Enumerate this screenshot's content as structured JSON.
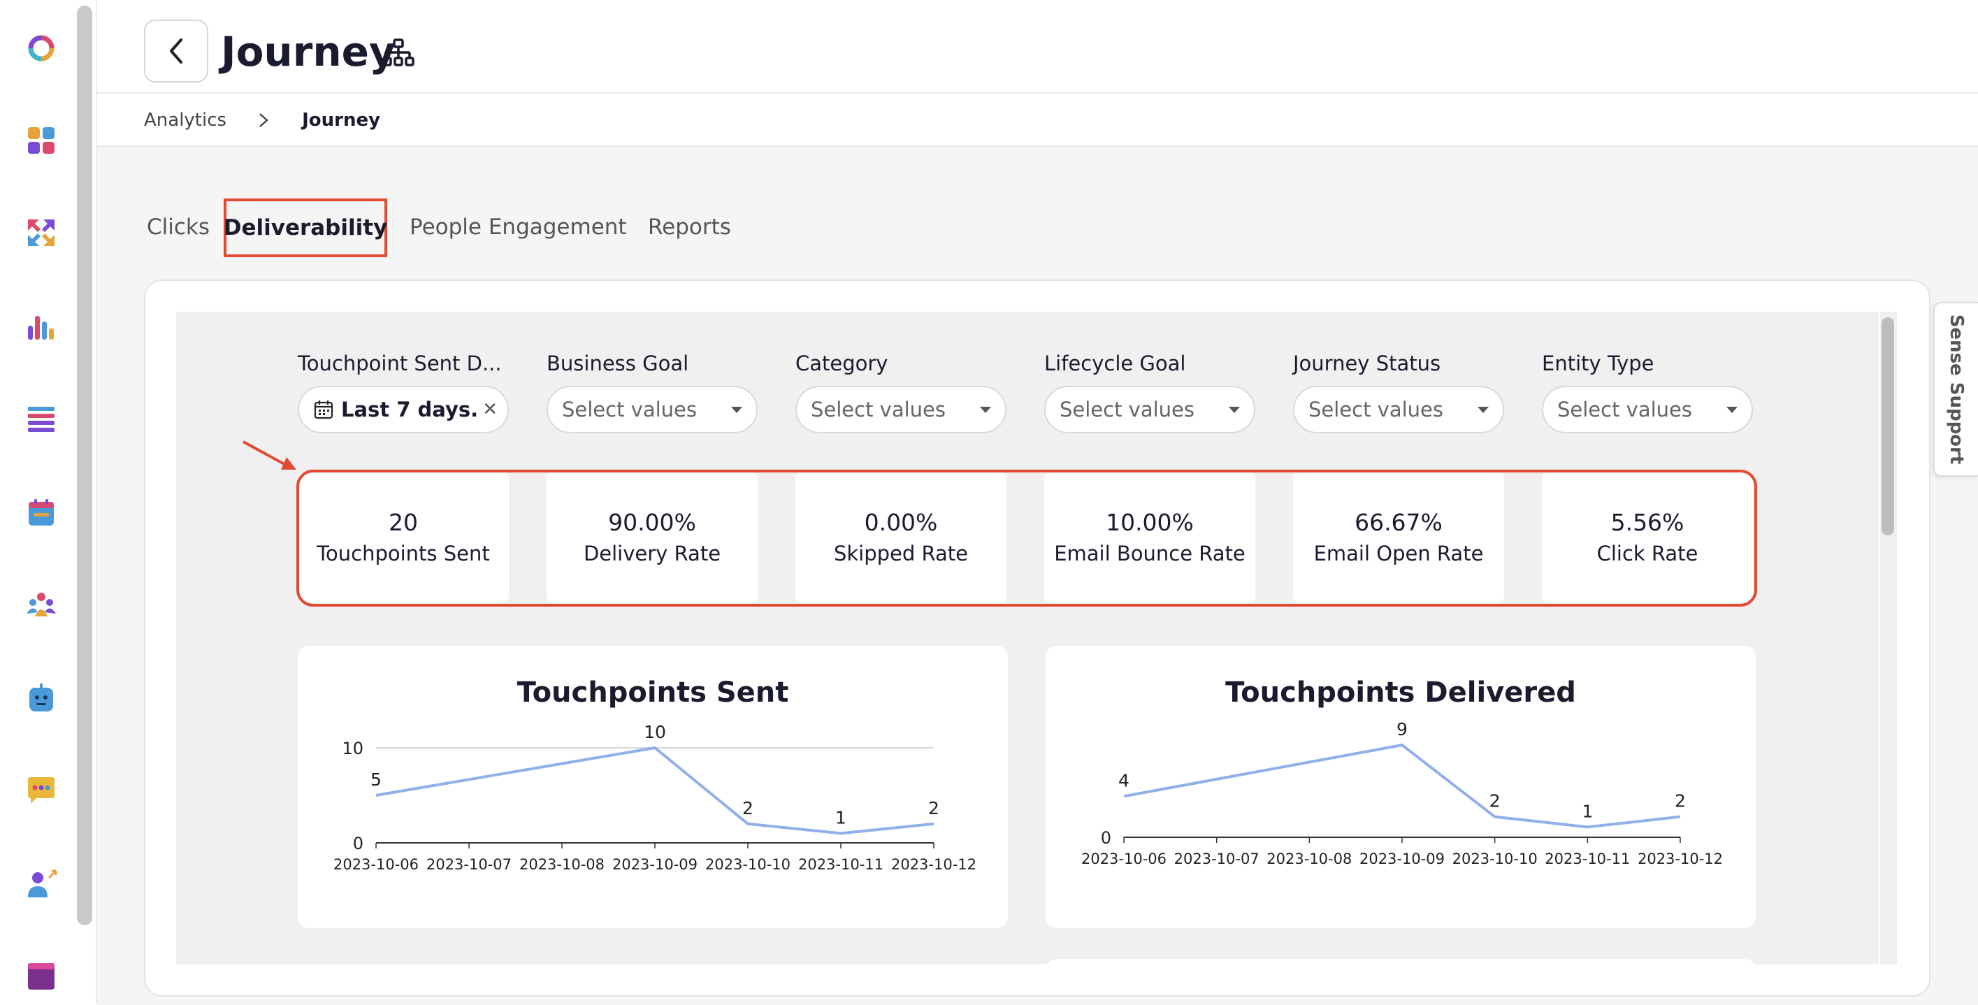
{
  "header": {
    "title": "Journey"
  },
  "breadcrumb": {
    "parent": "Analytics",
    "current": "Journey"
  },
  "tabs": [
    {
      "label": "Clicks"
    },
    {
      "label": "Deliverability",
      "active": true
    },
    {
      "label": "People Engagement"
    },
    {
      "label": "Reports"
    }
  ],
  "filters": [
    {
      "label": "Touchpoint Sent D...",
      "value": "Last 7 days..."
    },
    {
      "label": "Business Goal",
      "placeholder": "Select values"
    },
    {
      "label": "Category",
      "placeholder": "Select values"
    },
    {
      "label": "Lifecycle Goal",
      "placeholder": "Select values"
    },
    {
      "label": "Journey Status",
      "placeholder": "Select values"
    },
    {
      "label": "Entity Type",
      "placeholder": "Select values"
    }
  ],
  "kpis": [
    {
      "value": "20",
      "label": "Touchpoints Sent"
    },
    {
      "value": "90.00%",
      "label": "Delivery Rate"
    },
    {
      "value": "0.00%",
      "label": "Skipped Rate"
    },
    {
      "value": "10.00%",
      "label": "Email Bounce Rate"
    },
    {
      "value": "66.67%",
      "label": "Email Open Rate"
    },
    {
      "value": "5.56%",
      "label": "Click Rate"
    }
  ],
  "support": {
    "label": "Sense Support"
  },
  "colors": {
    "accent": "#e24a33",
    "line": "#8fb0e8"
  },
  "chart_data": [
    {
      "type": "line",
      "title": "Touchpoints Sent",
      "x": [
        "2023-10-06",
        "2023-10-07",
        "2023-10-08",
        "2023-10-09",
        "2023-10-10",
        "2023-10-11",
        "2023-10-12"
      ],
      "series": [
        {
          "values": [
            5,
            null,
            null,
            10,
            2,
            1,
            2
          ]
        }
      ],
      "yticks": [
        0,
        10
      ],
      "ylim": [
        0,
        10
      ]
    },
    {
      "type": "line",
      "title": "Touchpoints Delivered",
      "x": [
        "2023-10-06",
        "2023-10-07",
        "2023-10-08",
        "2023-10-09",
        "2023-10-10",
        "2023-10-11",
        "2023-10-12"
      ],
      "series": [
        {
          "values": [
            4,
            null,
            null,
            9,
            2,
            1,
            2
          ]
        }
      ],
      "yticks": [
        0
      ],
      "ylim": [
        0,
        9
      ]
    }
  ]
}
